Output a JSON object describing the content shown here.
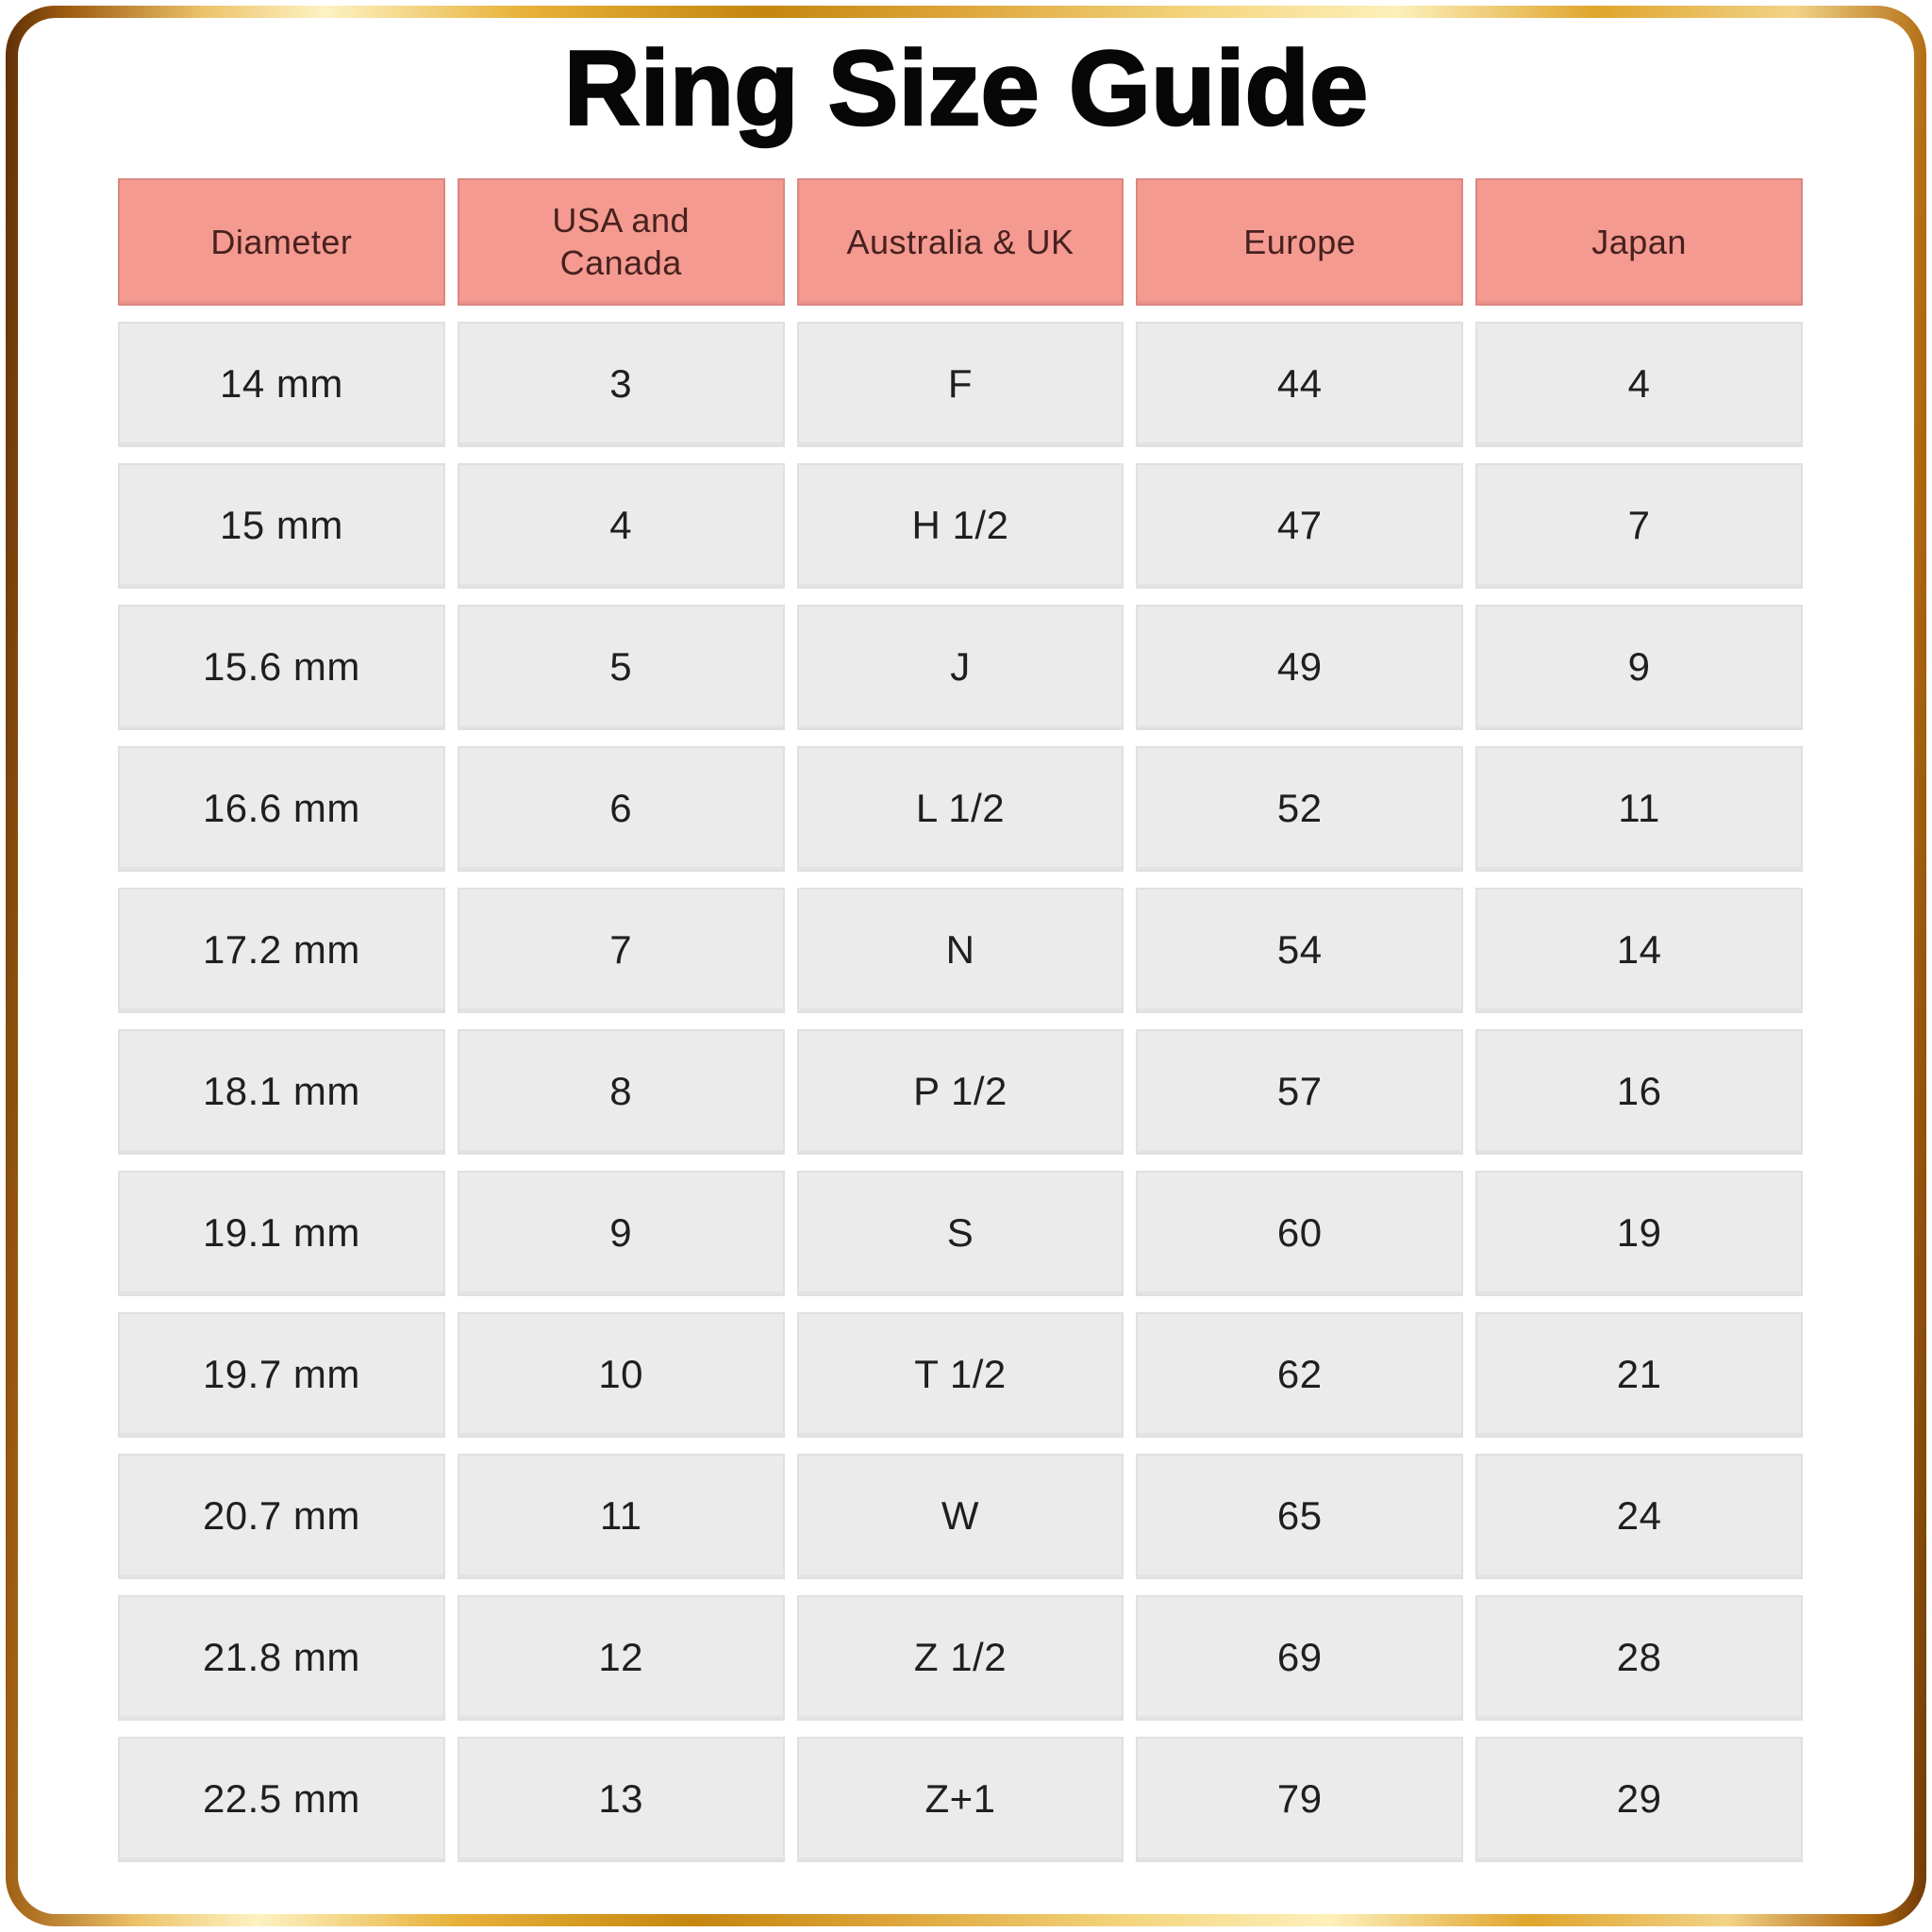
{
  "title": "Ring Size Guide",
  "chart_data": {
    "type": "table",
    "title": "Ring Size Guide",
    "columns": [
      "Diameter",
      "USA and\nCanada",
      "Australia & UK",
      "Europe",
      "Japan"
    ],
    "rows": [
      [
        "14 mm",
        "3",
        "F",
        "44",
        "4"
      ],
      [
        "15 mm",
        "4",
        "H 1/2",
        "47",
        "7"
      ],
      [
        "15.6 mm",
        "5",
        "J",
        "49",
        "9"
      ],
      [
        "16.6 mm",
        "6",
        "L 1/2",
        "52",
        "11"
      ],
      [
        "17.2 mm",
        "7",
        "N",
        "54",
        "14"
      ],
      [
        "18.1 mm",
        "8",
        "P 1/2",
        "57",
        "16"
      ],
      [
        "19.1 mm",
        "9",
        "S",
        "60",
        "19"
      ],
      [
        "19.7 mm",
        "10",
        "T 1/2",
        "62",
        "21"
      ],
      [
        "20.7 mm",
        "11",
        "W",
        "65",
        "24"
      ],
      [
        "21.8 mm",
        "12",
        "Z 1/2",
        "69",
        "28"
      ],
      [
        "22.5 mm",
        "13",
        "Z+1",
        "79",
        "29"
      ]
    ]
  },
  "colors": {
    "background": "#ffffff",
    "title_text": "#070707",
    "header_bg": "#f49a90",
    "header_border": "#db8780",
    "header_text": "#47211f",
    "cell_bg": "#ebebeb",
    "cell_border": "#e0e0e0",
    "cell_text": "#1f1f1f",
    "frame_gold_dark": "#6f3a08",
    "frame_gold_mid": "#c5860f",
    "frame_gold_light": "#fdf2c3"
  }
}
